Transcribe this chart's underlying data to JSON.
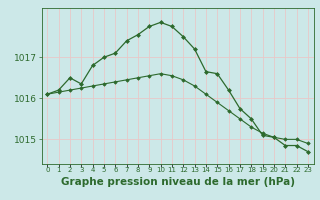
{
  "line1_x": [
    0,
    1,
    2,
    3,
    4,
    5,
    6,
    7,
    8,
    9,
    10,
    11,
    12,
    13,
    14,
    15,
    16,
    17,
    18,
    19,
    20,
    21,
    22,
    23
  ],
  "line1_y": [
    1016.1,
    1016.2,
    1016.5,
    1016.35,
    1016.8,
    1017.0,
    1017.1,
    1017.4,
    1017.55,
    1017.75,
    1017.85,
    1017.75,
    1017.5,
    1017.2,
    1016.65,
    1016.6,
    1016.2,
    1015.75,
    1015.5,
    1015.1,
    1015.05,
    1014.85,
    1014.85,
    1014.7
  ],
  "line2_x": [
    0,
    1,
    2,
    3,
    4,
    5,
    6,
    7,
    8,
    9,
    10,
    11,
    12,
    13,
    14,
    15,
    16,
    17,
    18,
    19,
    20,
    21,
    22,
    23
  ],
  "line2_y": [
    1016.1,
    1016.15,
    1016.2,
    1016.25,
    1016.3,
    1016.35,
    1016.4,
    1016.45,
    1016.5,
    1016.55,
    1016.6,
    1016.55,
    1016.45,
    1016.3,
    1016.1,
    1015.9,
    1015.7,
    1015.5,
    1015.3,
    1015.15,
    1015.05,
    1015.0,
    1015.0,
    1014.9
  ],
  "line_color": "#2d6a2d",
  "bg_color": "#cce8e8",
  "grid_color": "#e8c8c8",
  "yticks": [
    1015,
    1016,
    1017
  ],
  "ylim": [
    1014.4,
    1018.2
  ],
  "xlim": [
    -0.5,
    23.5
  ],
  "xlabel": "Graphe pression niveau de la mer (hPa)",
  "xlabel_fontsize": 7.5,
  "tick_fontsize": 6.5,
  "title": ""
}
